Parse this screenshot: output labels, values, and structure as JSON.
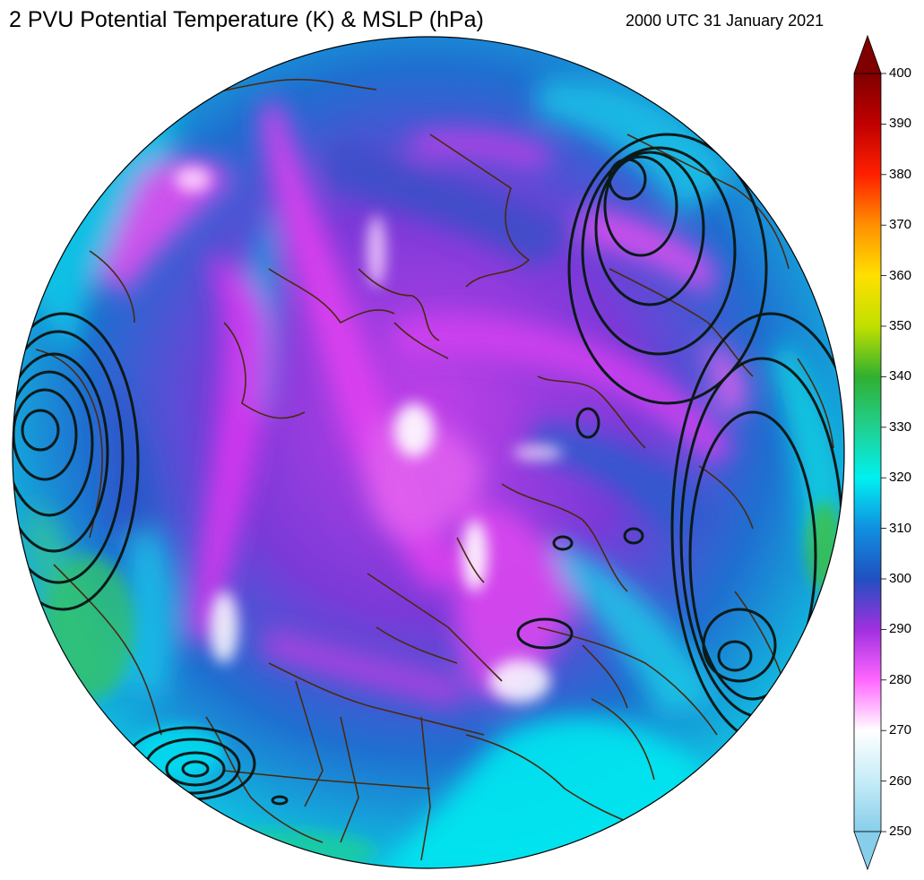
{
  "title": "2 PVU Potential Temperature (K) & MSLP (hPa)",
  "timestamp": "2000 UTC 31 January 2021",
  "colorbar": {
    "ticks": [
      "400",
      "390",
      "380",
      "370",
      "360",
      "350",
      "340",
      "330",
      "320",
      "310",
      "300",
      "290",
      "280",
      "270",
      "260",
      "250"
    ],
    "stops": [
      {
        "value": 250,
        "color": "#87ceeb"
      },
      {
        "value": 260,
        "color": "#c6ecf7"
      },
      {
        "value": 270,
        "color": "#ffffff"
      },
      {
        "value": 280,
        "color": "#ff66ff"
      },
      {
        "value": 290,
        "color": "#a030e0"
      },
      {
        "value": 300,
        "color": "#2050c0"
      },
      {
        "value": 310,
        "color": "#1090e0"
      },
      {
        "value": 320,
        "color": "#00f0f0"
      },
      {
        "value": 330,
        "color": "#20d090"
      },
      {
        "value": 340,
        "color": "#30b030"
      },
      {
        "value": 350,
        "color": "#c0e000"
      },
      {
        "value": 360,
        "color": "#ffe000"
      },
      {
        "value": 370,
        "color": "#ff9000"
      },
      {
        "value": 380,
        "color": "#ff2000"
      },
      {
        "value": 390,
        "color": "#c00000"
      },
      {
        "value": 400,
        "color": "#800000"
      }
    ]
  },
  "colors": {
    "coastline": "#4a2a10",
    "isobar": "#0a1a1a",
    "ocean_base": "#1e7fd0"
  }
}
